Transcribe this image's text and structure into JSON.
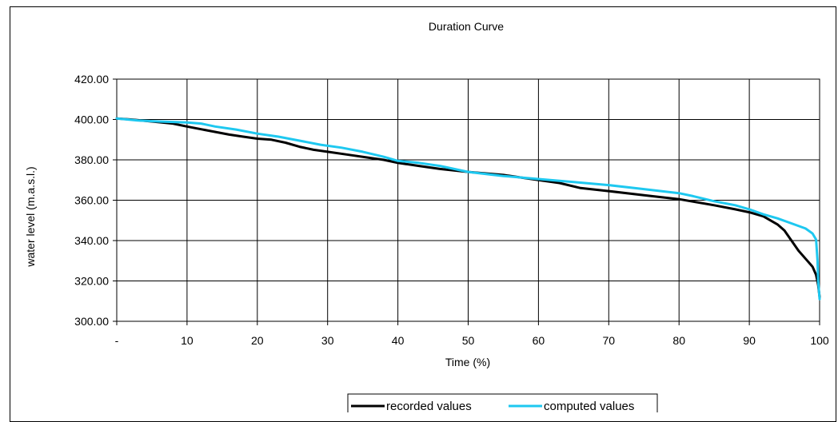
{
  "chart_data": {
    "type": "line",
    "title": "Duration Curve",
    "xlabel": "Time (%)",
    "ylabel": "water level (m.a.s.l.)",
    "xlim": [
      0,
      100
    ],
    "ylim": [
      300,
      420
    ],
    "x_ticks": [
      0,
      10,
      20,
      30,
      40,
      50,
      60,
      70,
      80,
      90,
      100
    ],
    "x_tick_labels": [
      "-",
      "10",
      "20",
      "30",
      "40",
      "50",
      "60",
      "70",
      "80",
      "90",
      "100"
    ],
    "y_ticks": [
      300,
      320,
      340,
      360,
      380,
      400,
      420
    ],
    "y_tick_labels": [
      "300.00",
      "320.00",
      "340.00",
      "360.00",
      "380.00",
      "400.00",
      "420.00"
    ],
    "grid": true,
    "legend_position": "bottom",
    "series": [
      {
        "name": "recorded values",
        "color": "#000000",
        "x": [
          0,
          2,
          5,
          8,
          10,
          13,
          16,
          18,
          20,
          22,
          24,
          26,
          28,
          30,
          33,
          36,
          38,
          40,
          43,
          46,
          50,
          55,
          60,
          63,
          66,
          70,
          75,
          80,
          85,
          88,
          90,
          92,
          94,
          95,
          96,
          97,
          98,
          99,
          99.5,
          99.8,
          100
        ],
        "y": [
          400.5,
          400,
          399,
          398,
          396.5,
          394.5,
          392.5,
          391.5,
          390.5,
          390,
          388.5,
          386.5,
          385,
          384,
          382.5,
          381,
          380,
          378.5,
          377,
          375.5,
          374,
          372.5,
          370,
          368.5,
          366,
          364.5,
          362.5,
          360.5,
          357.5,
          355.5,
          354,
          352,
          348,
          345,
          340,
          335,
          331,
          327,
          323,
          318,
          312
        ]
      },
      {
        "name": "computed values",
        "color": "#1EC8F0",
        "x": [
          0,
          3,
          6,
          10,
          12,
          14,
          17,
          20,
          23,
          26,
          29,
          32,
          35,
          38,
          40,
          43,
          46,
          50,
          55,
          60,
          65,
          70,
          75,
          80,
          82,
          85,
          88,
          90,
          92,
          94,
          96,
          98,
          99,
          99.5,
          99.7,
          99.8,
          100
        ],
        "y": [
          400.5,
          399.5,
          399,
          398.5,
          398,
          396.5,
          395,
          393,
          391.5,
          389.5,
          387.5,
          386,
          384,
          381.5,
          379.5,
          378.5,
          377,
          374,
          372,
          370.5,
          369,
          367.5,
          365.5,
          363.5,
          362,
          359.5,
          357.5,
          355.5,
          353,
          351,
          348.5,
          346,
          343.5,
          340.5,
          330,
          320,
          311
        ]
      }
    ]
  }
}
